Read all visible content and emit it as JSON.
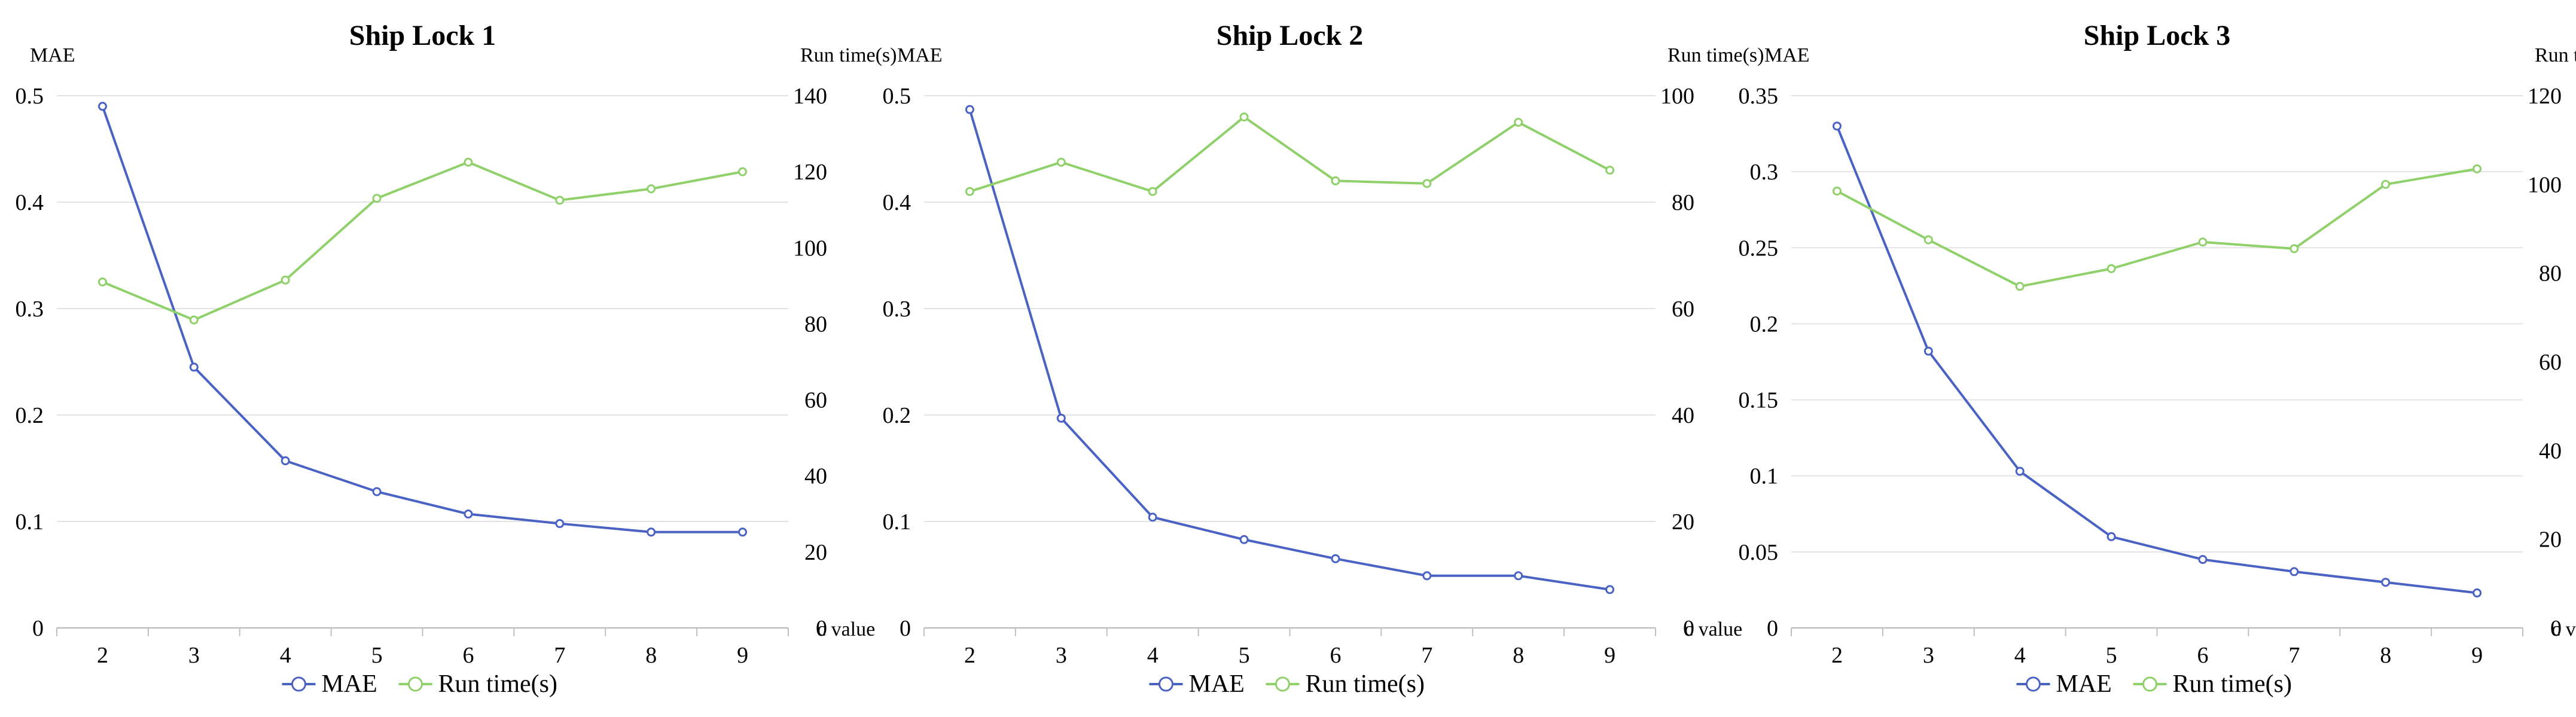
{
  "chart_data": [
    {
      "type": "line",
      "title": "Ship Lock 1",
      "ylabel": "MAE",
      "y2label": "Run time(s)",
      "xlabel": "c value",
      "x": [
        2,
        3,
        4,
        5,
        6,
        7,
        8,
        9
      ],
      "ylim": [
        0,
        0.5
      ],
      "yticks": [
        0,
        0.1,
        0.2,
        0.3,
        0.4,
        0.5
      ],
      "y2lim": [
        0,
        140
      ],
      "y2ticks": [
        0,
        20,
        40,
        60,
        80,
        100,
        120,
        140
      ],
      "series": [
        {
          "name": "MAE",
          "axis": "left",
          "color": "#4a62c4",
          "values": [
            0.49,
            0.245,
            0.157,
            0.128,
            0.107,
            0.098,
            0.09,
            0.09
          ]
        },
        {
          "name": "Run time(s)",
          "axis": "right",
          "color": "#8fd06a",
          "values": [
            91,
            81,
            91.5,
            113,
            122.5,
            112.5,
            115.5,
            120
          ]
        }
      ],
      "grid": true,
      "legend": "bottom"
    },
    {
      "type": "line",
      "title": "Ship Lock 2",
      "ylabel": "MAE",
      "y2label": "Run time(s)",
      "xlabel": "c value",
      "x": [
        2,
        3,
        4,
        5,
        6,
        7,
        8,
        9
      ],
      "ylim": [
        0,
        0.5
      ],
      "yticks": [
        0,
        0.1,
        0.2,
        0.3,
        0.4,
        0.5
      ],
      "y2lim": [
        0,
        100
      ],
      "y2ticks": [
        0,
        20,
        40,
        60,
        80,
        100
      ],
      "series": [
        {
          "name": "MAE",
          "axis": "left",
          "color": "#4a62c4",
          "values": [
            0.487,
            0.197,
            0.104,
            0.083,
            0.065,
            0.049,
            0.049,
            0.036
          ]
        },
        {
          "name": "Run time(s)",
          "axis": "right",
          "color": "#8fd06a",
          "values": [
            82,
            87.5,
            82,
            96,
            84,
            83.5,
            95,
            86
          ]
        }
      ],
      "grid": true,
      "legend": "bottom"
    },
    {
      "type": "line",
      "title": "Ship Lock 3",
      "ylabel": "MAE",
      "y2label": "Run time(s)",
      "xlabel": "c value",
      "x": [
        2,
        3,
        4,
        5,
        6,
        7,
        8,
        9
      ],
      "ylim": [
        0,
        0.35
      ],
      "yticks": [
        0,
        0.05,
        0.1,
        0.15,
        0.2,
        0.25,
        0.3,
        0.35
      ],
      "y2lim": [
        0,
        120
      ],
      "y2ticks": [
        0,
        20,
        40,
        60,
        80,
        100,
        120
      ],
      "series": [
        {
          "name": "MAE",
          "axis": "left",
          "color": "#4a62c4",
          "values": [
            0.33,
            0.182,
            0.103,
            0.06,
            0.045,
            0.037,
            0.03,
            0.023
          ]
        },
        {
          "name": "Run time(s)",
          "axis": "right",
          "color": "#8fd06a",
          "values": [
            98.5,
            87.5,
            77,
            81,
            87,
            85.5,
            100,
            103.5
          ]
        }
      ],
      "grid": true,
      "legend": "bottom"
    }
  ]
}
